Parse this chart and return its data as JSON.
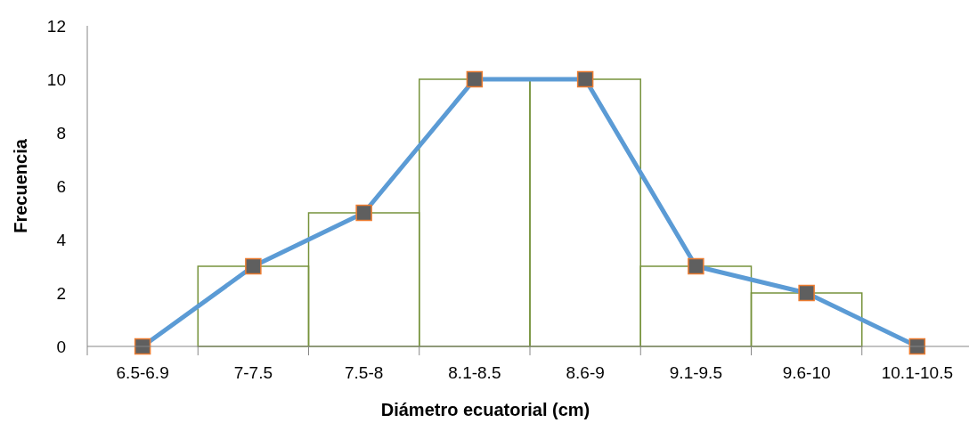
{
  "chart_data": {
    "type": "bar",
    "xlabel": "Diámetro ecuatorial (cm)",
    "ylabel": "Frecuencia",
    "categories": [
      "6.5-6.9",
      "7-7.5",
      "7.5-8",
      "8.1-8.5",
      "8.6-9",
      "9.1-9.5",
      "9.6-10",
      "10.1-10.5"
    ],
    "series": [
      {
        "color": "#77933c",
        "values": [
          0,
          3,
          5,
          10,
          10,
          3,
          2,
          0
        ]
      },
      {
        "type": "line",
        "color": "#5b9bd5",
        "values": [
          0,
          3,
          5,
          10,
          10,
          3,
          2,
          0
        ]
      }
    ],
    "marker": "square",
    "ylim": [
      0,
      12
    ],
    "yticks": [
      0,
      2,
      4,
      6,
      8,
      10,
      12
    ]
  }
}
